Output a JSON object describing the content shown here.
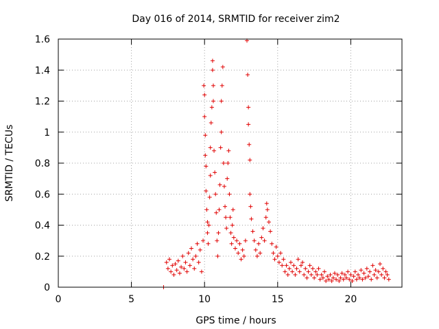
{
  "chart_data": {
    "type": "scatter",
    "title": "Day 016 of 2014, SRMTID for receiver zim2",
    "xlabel": "GPS time / hours",
    "ylabel": "SRMTID / TECUs",
    "xlim": [
      0,
      23.5
    ],
    "ylim": [
      0,
      1.6
    ],
    "grid": true,
    "xticks": [
      0,
      5,
      10,
      15,
      20
    ],
    "yticks": [
      0,
      0.2,
      0.4,
      0.6,
      0.8,
      1.0,
      1.2,
      1.4,
      1.6
    ],
    "xtick_labels": [
      "0",
      "5",
      "10",
      "15",
      "20"
    ],
    "ytick_labels": [
      "0",
      "0.2",
      "0.4",
      "0.6",
      "0.8",
      "1",
      "1.2",
      "1.4",
      "1.6"
    ],
    "marker": "+",
    "color": "#e00000",
    "series": [
      {
        "name": "SRMTID",
        "points": [
          [
            7.2,
            0.0
          ],
          [
            7.4,
            0.16
          ],
          [
            7.5,
            0.12
          ],
          [
            7.6,
            0.18
          ],
          [
            7.7,
            0.1
          ],
          [
            7.8,
            0.14
          ],
          [
            7.9,
            0.08
          ],
          [
            8.0,
            0.15
          ],
          [
            8.1,
            0.11
          ],
          [
            8.2,
            0.17
          ],
          [
            8.3,
            0.09
          ],
          [
            8.4,
            0.13
          ],
          [
            8.5,
            0.2
          ],
          [
            8.6,
            0.12
          ],
          [
            8.7,
            0.16
          ],
          [
            8.8,
            0.1
          ],
          [
            8.9,
            0.22
          ],
          [
            9.0,
            0.14
          ],
          [
            9.1,
            0.25
          ],
          [
            9.2,
            0.18
          ],
          [
            9.3,
            0.12
          ],
          [
            9.4,
            0.2
          ],
          [
            9.5,
            0.28
          ],
          [
            9.6,
            0.16
          ],
          [
            9.7,
            0.24
          ],
          [
            9.8,
            0.1
          ],
          [
            9.9,
            0.3
          ],
          [
            9.95,
            1.3
          ],
          [
            10.0,
            1.24
          ],
          [
            10.0,
            1.1
          ],
          [
            10.05,
            0.98
          ],
          [
            10.05,
            0.85
          ],
          [
            10.1,
            0.78
          ],
          [
            10.1,
            0.62
          ],
          [
            10.15,
            0.5
          ],
          [
            10.2,
            0.42
          ],
          [
            10.2,
            0.35
          ],
          [
            10.25,
            0.28
          ],
          [
            10.3,
            0.4
          ],
          [
            10.35,
            0.58
          ],
          [
            10.4,
            0.72
          ],
          [
            10.4,
            0.9
          ],
          [
            10.45,
            1.06
          ],
          [
            10.5,
            1.16
          ],
          [
            10.55,
            1.46
          ],
          [
            10.55,
            1.4
          ],
          [
            10.6,
            1.3
          ],
          [
            10.6,
            1.2
          ],
          [
            10.65,
            0.88
          ],
          [
            10.7,
            0.74
          ],
          [
            10.75,
            0.6
          ],
          [
            10.8,
            0.48
          ],
          [
            10.85,
            0.3
          ],
          [
            10.9,
            0.2
          ],
          [
            10.95,
            0.35
          ],
          [
            11.0,
            0.5
          ],
          [
            11.05,
            0.66
          ],
          [
            11.1,
            0.9
          ],
          [
            11.15,
            1.0
          ],
          [
            11.15,
            1.2
          ],
          [
            11.2,
            1.3
          ],
          [
            11.25,
            1.42
          ],
          [
            11.3,
            0.8
          ],
          [
            11.35,
            0.65
          ],
          [
            11.4,
            0.52
          ],
          [
            11.45,
            0.45
          ],
          [
            11.5,
            0.38
          ],
          [
            11.55,
            0.7
          ],
          [
            11.6,
            0.8
          ],
          [
            11.65,
            0.88
          ],
          [
            11.7,
            0.6
          ],
          [
            11.75,
            0.45
          ],
          [
            11.8,
            0.35
          ],
          [
            11.85,
            0.28
          ],
          [
            11.9,
            0.4
          ],
          [
            11.95,
            0.5
          ],
          [
            12.0,
            0.32
          ],
          [
            12.1,
            0.25
          ],
          [
            12.2,
            0.3
          ],
          [
            12.3,
            0.22
          ],
          [
            12.4,
            0.28
          ],
          [
            12.5,
            0.18
          ],
          [
            12.6,
            0.24
          ],
          [
            12.7,
            0.2
          ],
          [
            12.8,
            0.3
          ],
          [
            12.9,
            1.59
          ],
          [
            12.95,
            1.37
          ],
          [
            13.0,
            1.16
          ],
          [
            13.0,
            1.05
          ],
          [
            13.05,
            0.92
          ],
          [
            13.1,
            0.82
          ],
          [
            13.1,
            0.6
          ],
          [
            13.15,
            0.52
          ],
          [
            13.2,
            0.44
          ],
          [
            13.3,
            0.36
          ],
          [
            13.4,
            0.3
          ],
          [
            13.5,
            0.24
          ],
          [
            13.6,
            0.2
          ],
          [
            13.7,
            0.28
          ],
          [
            13.8,
            0.22
          ],
          [
            13.9,
            0.32
          ],
          [
            14.0,
            0.38
          ],
          [
            14.1,
            0.3
          ],
          [
            14.2,
            0.45
          ],
          [
            14.25,
            0.54
          ],
          [
            14.3,
            0.5
          ],
          [
            14.4,
            0.42
          ],
          [
            14.5,
            0.36
          ],
          [
            14.6,
            0.28
          ],
          [
            14.7,
            0.22
          ],
          [
            14.8,
            0.18
          ],
          [
            14.9,
            0.26
          ],
          [
            15.0,
            0.2
          ],
          [
            15.1,
            0.16
          ],
          [
            15.2,
            0.22
          ],
          [
            15.3,
            0.14
          ],
          [
            15.4,
            0.18
          ],
          [
            15.5,
            0.1
          ],
          [
            15.6,
            0.14
          ],
          [
            15.7,
            0.08
          ],
          [
            15.8,
            0.12
          ],
          [
            15.9,
            0.16
          ],
          [
            16.0,
            0.1
          ],
          [
            16.1,
            0.14
          ],
          [
            16.2,
            0.08
          ],
          [
            16.3,
            0.12
          ],
          [
            16.4,
            0.18
          ],
          [
            16.5,
            0.1
          ],
          [
            16.6,
            0.14
          ],
          [
            16.7,
            0.16
          ],
          [
            16.8,
            0.08
          ],
          [
            16.9,
            0.12
          ],
          [
            17.0,
            0.06
          ],
          [
            17.1,
            0.1
          ],
          [
            17.2,
            0.14
          ],
          [
            17.3,
            0.08
          ],
          [
            17.4,
            0.12
          ],
          [
            17.5,
            0.06
          ],
          [
            17.6,
            0.1
          ],
          [
            17.7,
            0.08
          ],
          [
            17.8,
            0.12
          ],
          [
            17.9,
            0.05
          ],
          [
            18.0,
            0.08
          ],
          [
            18.1,
            0.06
          ],
          [
            18.2,
            0.1
          ],
          [
            18.3,
            0.04
          ],
          [
            18.4,
            0.07
          ],
          [
            18.5,
            0.05
          ],
          [
            18.6,
            0.08
          ],
          [
            18.7,
            0.04
          ],
          [
            18.8,
            0.06
          ],
          [
            18.9,
            0.09
          ],
          [
            19.0,
            0.05
          ],
          [
            19.1,
            0.08
          ],
          [
            19.2,
            0.04
          ],
          [
            19.3,
            0.06
          ],
          [
            19.4,
            0.09
          ],
          [
            19.5,
            0.05
          ],
          [
            19.6,
            0.08
          ],
          [
            19.7,
            0.06
          ],
          [
            19.8,
            0.1
          ],
          [
            19.9,
            0.05
          ],
          [
            20.0,
            0.08
          ],
          [
            20.1,
            0.04
          ],
          [
            20.2,
            0.07
          ],
          [
            20.3,
            0.1
          ],
          [
            20.4,
            0.05
          ],
          [
            20.5,
            0.08
          ],
          [
            20.6,
            0.06
          ],
          [
            20.7,
            0.11
          ],
          [
            20.8,
            0.05
          ],
          [
            20.9,
            0.09
          ],
          [
            21.0,
            0.06
          ],
          [
            21.1,
            0.12
          ],
          [
            21.2,
            0.07
          ],
          [
            21.3,
            0.1
          ],
          [
            21.4,
            0.05
          ],
          [
            21.5,
            0.14
          ],
          [
            21.6,
            0.08
          ],
          [
            21.7,
            0.11
          ],
          [
            21.8,
            0.06
          ],
          [
            21.9,
            0.1
          ],
          [
            22.0,
            0.15
          ],
          [
            22.1,
            0.08
          ],
          [
            22.2,
            0.12
          ],
          [
            22.3,
            0.06
          ],
          [
            22.4,
            0.1
          ],
          [
            22.5,
            0.08
          ],
          [
            22.6,
            0.05
          ]
        ]
      }
    ]
  }
}
